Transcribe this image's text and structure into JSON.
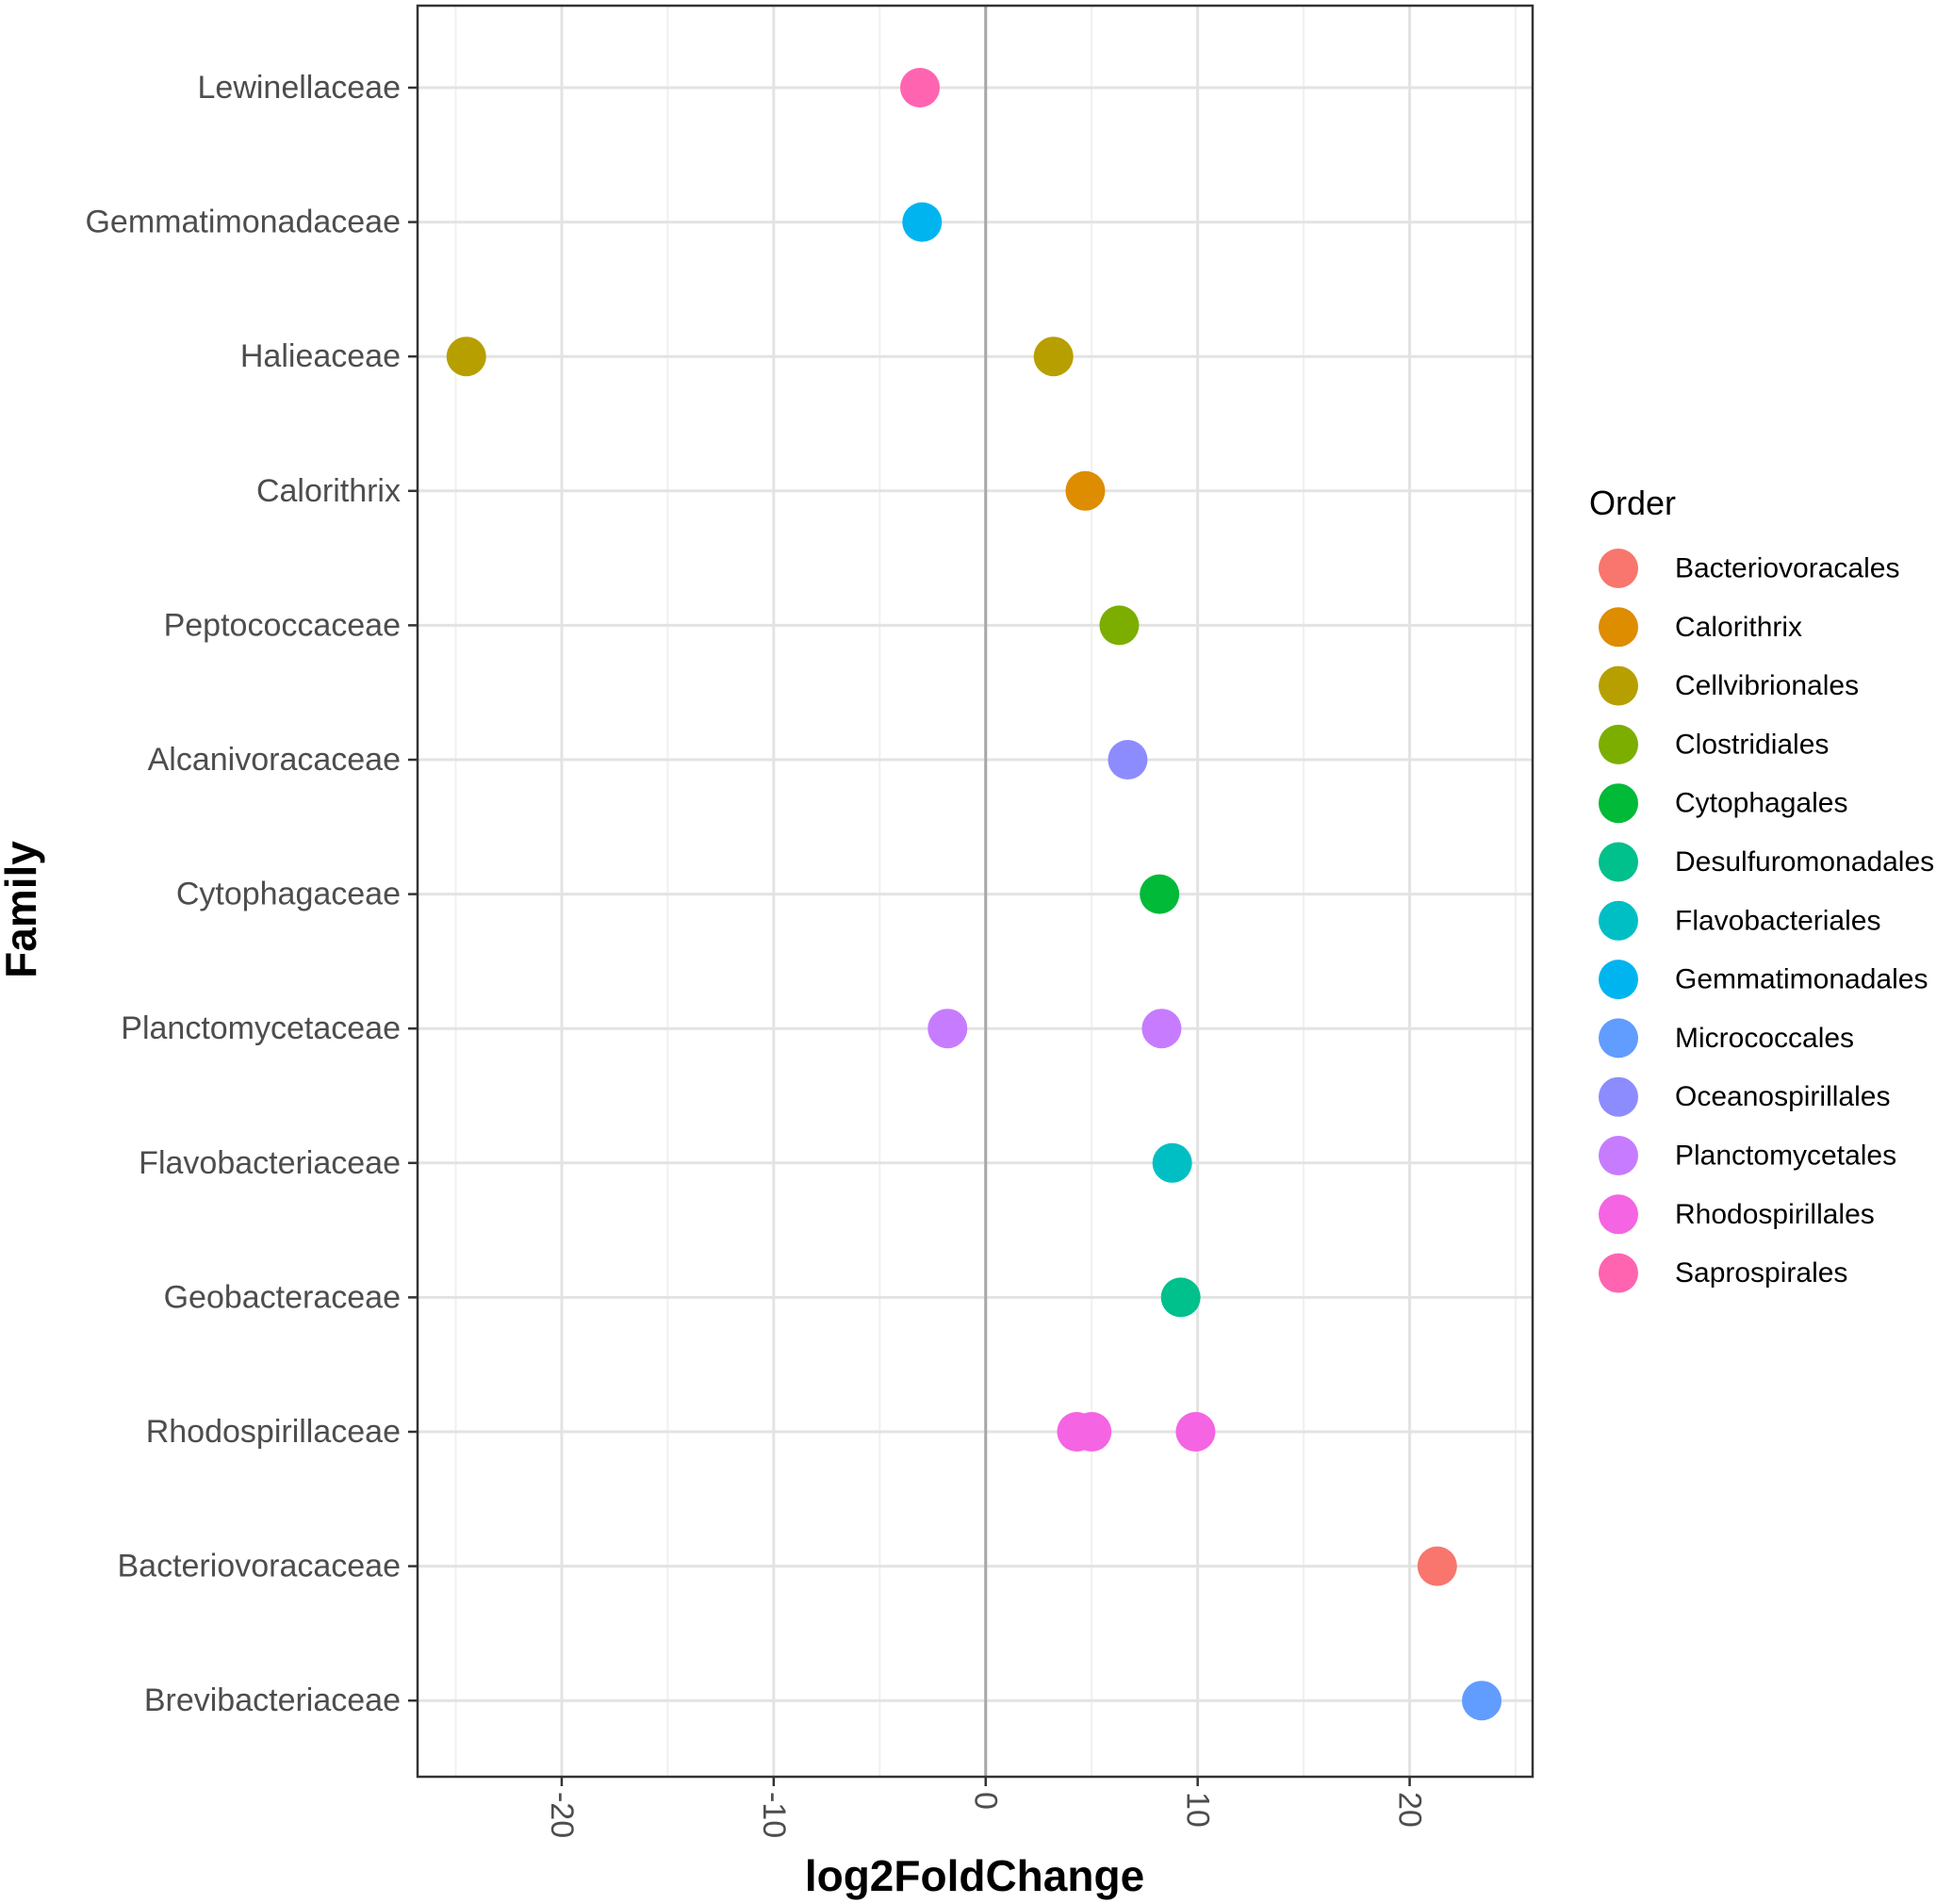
{
  "chart_data": {
    "type": "scatter",
    "title": "",
    "xlabel": "log2FoldChange",
    "ylabel": "Family",
    "xlim": [
      -26.8,
      25.8
    ],
    "x_ticks": [
      -20,
      -10,
      0,
      10,
      20
    ],
    "x_tick_labels": [
      "-20",
      "-10",
      "0",
      "10",
      "20"
    ],
    "vline_at": 0,
    "grid": true,
    "legend_title": "Order",
    "legend_position": "right",
    "categories": [
      "Lewinellaceae",
      "Gemmatimonadaceae",
      "Halieaceae",
      "Calorithrix",
      "Peptococcaceae",
      "Alcanivoracaceae",
      "Cytophagaceae",
      "Planctomycetaceae",
      "Flavobacteriaceae",
      "Geobacteraceae",
      "Rhodospirillaceae",
      "Bacteriovoracaceae",
      "Brevibacteriaceae"
    ],
    "series": [
      {
        "name": "Bacteriovoracales",
        "color": "#F8766D",
        "points": [
          {
            "family": "Bacteriovoracaceae",
            "x": 21.3
          }
        ]
      },
      {
        "name": "Calorithrix",
        "color": "#DE8C00",
        "points": [
          {
            "family": "Calorithrix",
            "x": 4.7
          }
        ]
      },
      {
        "name": "Cellvibrionales",
        "color": "#B79F00",
        "points": [
          {
            "family": "Halieaceae",
            "x": -24.5
          },
          {
            "family": "Halieaceae",
            "x": 3.2
          }
        ]
      },
      {
        "name": "Clostridiales",
        "color": "#7CAE00",
        "points": [
          {
            "family": "Peptococcaceae",
            "x": 6.3
          }
        ]
      },
      {
        "name": "Cytophagales",
        "color": "#00BA38",
        "points": [
          {
            "family": "Cytophagaceae",
            "x": 8.2
          }
        ]
      },
      {
        "name": "Desulfuromonadales",
        "color": "#00C08B",
        "points": [
          {
            "family": "Geobacteraceae",
            "x": 9.2
          }
        ]
      },
      {
        "name": "Flavobacteriales",
        "color": "#00BFC4",
        "points": [
          {
            "family": "Flavobacteriaceae",
            "x": 8.8
          }
        ]
      },
      {
        "name": "Gemmatimonadales",
        "color": "#00B4F0",
        "points": [
          {
            "family": "Gemmatimonadaceae",
            "x": -3.0
          }
        ]
      },
      {
        "name": "Micrococcales",
        "color": "#619CFF",
        "points": [
          {
            "family": "Brevibacteriaceae",
            "x": 23.4
          }
        ]
      },
      {
        "name": "Oceanospirillales",
        "color": "#8C8CFF",
        "points": [
          {
            "family": "Alcanivoracaceae",
            "x": 6.7
          }
        ]
      },
      {
        "name": "Planctomycetales",
        "color": "#C77CFF",
        "points": [
          {
            "family": "Planctomycetaceae",
            "x": -1.8
          },
          {
            "family": "Planctomycetaceae",
            "x": 8.3
          }
        ]
      },
      {
        "name": "Rhodospirillales",
        "color": "#F564E3",
        "points": [
          {
            "family": "Rhodospirillaceae",
            "x": 4.3
          },
          {
            "family": "Rhodospirillaceae",
            "x": 5.0
          },
          {
            "family": "Rhodospirillaceae",
            "x": 9.9
          }
        ]
      },
      {
        "name": "Saprospirales",
        "color": "#FF64B0",
        "points": [
          {
            "family": "Lewinellaceae",
            "x": -3.1
          }
        ]
      }
    ]
  }
}
